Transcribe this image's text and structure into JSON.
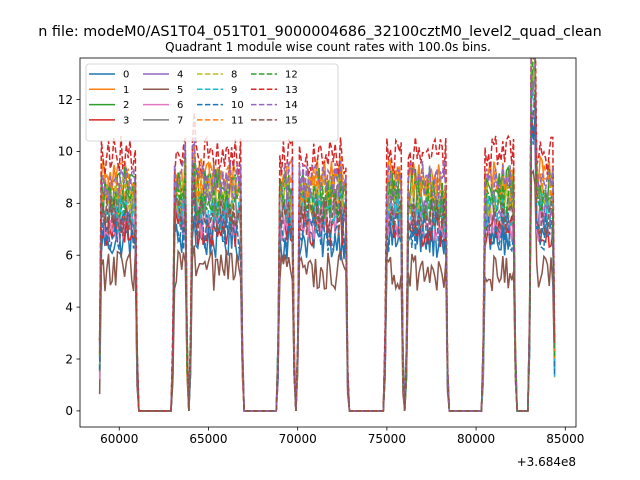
{
  "figure": {
    "suptitle": "n file: modeM0/AS1T04_051T01_9000004686_32100cztM0_level2_quad_clean",
    "offset_label": "+3.684e8"
  },
  "chart_data": {
    "type": "line",
    "title": "Quadrant 1 module wise count rates with 100.0s bins.",
    "xlabel": "",
    "ylabel": "",
    "xlim": [
      57800,
      85600
    ],
    "ylim": [
      -0.62,
      13.6
    ],
    "x_ticks": [
      60000,
      65000,
      70000,
      75000,
      80000,
      85000
    ],
    "x_tick_labels": [
      "60000",
      "65000",
      "70000",
      "75000",
      "80000",
      "85000"
    ],
    "y_ticks": [
      0,
      2,
      4,
      6,
      8,
      10,
      12
    ],
    "y_tick_labels": [
      "0",
      "2",
      "4",
      "6",
      "8",
      "10",
      "12"
    ],
    "grid": false,
    "legend_location": "upper-left",
    "legend_columns": 4,
    "time_range": [
      58900,
      84400
    ],
    "bin_seconds": 100,
    "on_segments": [
      [
        58900,
        61000
      ],
      [
        63000,
        63800
      ],
      [
        64000,
        66900
      ],
      [
        68900,
        69800
      ],
      [
        70000,
        72800
      ],
      [
        74900,
        75900
      ],
      [
        76100,
        78400
      ],
      [
        80400,
        82200
      ],
      [
        83000,
        84400
      ]
    ],
    "series": [
      {
        "name": "0",
        "color": "#1f77b4",
        "dash": "solid",
        "mean_rate": 6.6
      },
      {
        "name": "1",
        "color": "#ff7f0e",
        "dash": "solid",
        "mean_rate": 9.0
      },
      {
        "name": "2",
        "color": "#2ca02c",
        "dash": "solid",
        "mean_rate": 8.6
      },
      {
        "name": "3",
        "color": "#d62728",
        "dash": "solid",
        "mean_rate": 7.1
      },
      {
        "name": "4",
        "color": "#9467bd",
        "dash": "solid",
        "mean_rate": 7.8
      },
      {
        "name": "5",
        "color": "#8c564b",
        "dash": "solid",
        "mean_rate": 5.4
      },
      {
        "name": "6",
        "color": "#e377c2",
        "dash": "solid",
        "mean_rate": 7.3
      },
      {
        "name": "7",
        "color": "#7f7f7f",
        "dash": "solid",
        "mean_rate": 8.0
      },
      {
        "name": "8",
        "color": "#bcbd22",
        "dash": "dashed",
        "mean_rate": 8.3
      },
      {
        "name": "9",
        "color": "#17becf",
        "dash": "dashed",
        "mean_rate": 7.6
      },
      {
        "name": "10",
        "color": "#1f77b4",
        "dash": "dashed",
        "mean_rate": 6.9
      },
      {
        "name": "11",
        "color": "#ff7f0e",
        "dash": "dashed",
        "mean_rate": 8.8
      },
      {
        "name": "12",
        "color": "#2ca02c",
        "dash": "dashed",
        "mean_rate": 8.1
      },
      {
        "name": "13",
        "color": "#d62728",
        "dash": "dashed",
        "mean_rate": 9.8
      },
      {
        "name": "14",
        "color": "#9467bd",
        "dash": "dashed",
        "mean_rate": 8.9
      },
      {
        "name": "15",
        "color": "#8c564b",
        "dash": "dashed",
        "mean_rate": 7.4
      }
    ]
  }
}
